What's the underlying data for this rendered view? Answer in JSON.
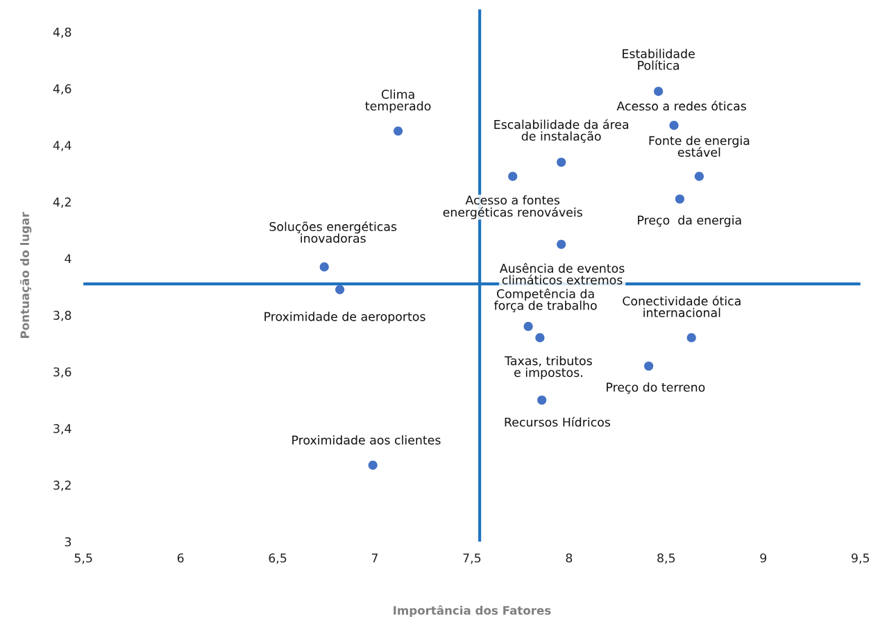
{
  "chart_data": {
    "type": "scatter",
    "xlabel": "Importância dos Fatores",
    "ylabel": "Pontuação do lugar",
    "x": [
      8.46,
      8.54,
      8.67,
      8.57,
      7.96,
      7.71,
      7.12,
      6.74,
      6.82,
      7.96,
      7.79,
      7.85,
      8.63,
      8.41,
      7.86,
      6.99
    ],
    "series": [
      {
        "color": "#4472c4",
        "values": [
          4.59,
          4.47,
          4.29,
          4.21,
          4.34,
          4.29,
          4.45,
          3.97,
          3.89,
          4.05,
          3.76,
          3.72,
          3.72,
          3.62,
          3.5,
          3.27
        ]
      }
    ],
    "annotations": [
      {
        "text": "Estabilidade\nPolítica",
        "x": 8.46,
        "y": 4.59
      },
      {
        "text": "Acesso a redes óticas",
        "x": 8.54,
        "y": 4.47
      },
      {
        "text": "Fonte de energia\nestável",
        "x": 8.67,
        "y": 4.29
      },
      {
        "text": "Preço  da energia",
        "x": 8.57,
        "y": 4.21
      },
      {
        "text": "Escalabilidade da área\nde instalação",
        "x": 7.96,
        "y": 4.34
      },
      {
        "text": "Acesso a fontes\nenergéticas renováveis",
        "x": 7.71,
        "y": 4.29
      },
      {
        "text": "Clima\ntemperado",
        "x": 7.12,
        "y": 4.45
      },
      {
        "text": "Soluções energéticas\ninovadoras",
        "x": 6.74,
        "y": 3.97
      },
      {
        "text": "Proximidade de aeroportos",
        "x": 6.82,
        "y": 3.89
      },
      {
        "text": "Ausência de eventos\nclimáticos extremos",
        "x": 7.96,
        "y": 4.05
      },
      {
        "text": "Competência da\nforça de trabalho",
        "x": 7.79,
        "y": 3.76
      },
      {
        "text": "Taxas, tributos\ne impostos.",
        "x": 7.85,
        "y": 3.72
      },
      {
        "text": "Conectividade ótica\ninternacional",
        "x": 8.63,
        "y": 3.72
      },
      {
        "text": "Preço do terreno",
        "x": 8.41,
        "y": 3.62
      },
      {
        "text": "Recursos Hídricos",
        "x": 7.86,
        "y": 3.5
      },
      {
        "text": "Proximidade aos clientes",
        "x": 6.99,
        "y": 3.27
      }
    ],
    "ref_lines": [
      {
        "axis": "x",
        "value": 7.54,
        "color": "#1f73be"
      },
      {
        "axis": "y",
        "value": 3.91,
        "color": "#1f73be"
      }
    ],
    "xlim": [
      5.5,
      9.5
    ],
    "ylim": [
      3,
      4.88
    ],
    "xticks": [
      {
        "value": 5.5,
        "label": "5,5"
      },
      6,
      {
        "value": 6.5,
        "label": "6,5"
      },
      7,
      {
        "value": 7.5,
        "label": "7,5"
      },
      8,
      {
        "value": 8.5,
        "label": "8,5"
      },
      9,
      {
        "value": 9.5,
        "label": "9,5"
      }
    ],
    "yticks": [
      3,
      {
        "value": 3.2,
        "label": "3,2"
      },
      {
        "value": 3.4,
        "label": "3,4"
      },
      {
        "value": 3.6,
        "label": "3,6"
      },
      {
        "value": 3.8,
        "label": "3,8"
      },
      4,
      {
        "value": 4.2,
        "label": "4,2"
      },
      {
        "value": 4.4,
        "label": "4,4"
      },
      {
        "value": 4.6,
        "label": "4,6"
      },
      {
        "value": 4.8,
        "label": "4,8"
      }
    ],
    "grid": false,
    "legend": false,
    "marker": "circle"
  }
}
